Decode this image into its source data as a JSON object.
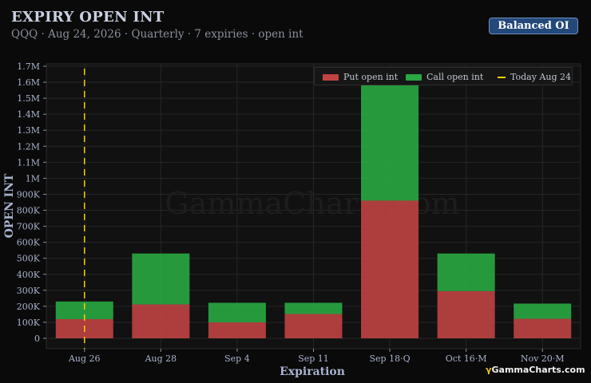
{
  "header": {
    "title": "EXPIRY OPEN INT",
    "subtitle": "QQQ · Aug 24, 2026 · Quarterly · 7 expiries · open int",
    "balanced_button": "Balanced OI"
  },
  "watermark": "GammaCharts.com",
  "logo": {
    "glyph": "γ",
    "text": "GammaCharts.com"
  },
  "colors": {
    "put": "#c04343",
    "call": "#2aa842",
    "today": "#f5d000",
    "background": "#0a0a0a"
  },
  "chart_data": {
    "type": "bar",
    "stacked": true,
    "xlabel": "Expiration",
    "ylabel": "OPEN INT",
    "categories": [
      "Aug 26",
      "Aug 28",
      "Sep 4",
      "Sep 11",
      "Sep 18·Q",
      "Oct 16·M",
      "Nov 20·M"
    ],
    "series": [
      {
        "name": "Put open int",
        "values": [
          120000,
          212000,
          100000,
          152000,
          860000,
          295000,
          122000
        ]
      },
      {
        "name": "Call open int",
        "values": [
          110000,
          318000,
          122000,
          70000,
          805000,
          235000,
          95000
        ]
      }
    ],
    "today_marker": {
      "label": "Today Aug 24",
      "category_index": 0
    },
    "ylim": [
      0,
      1700000
    ],
    "yticks": [
      0,
      100000,
      200000,
      300000,
      400000,
      500000,
      600000,
      700000,
      800000,
      900000,
      1000000,
      1100000,
      1200000,
      1300000,
      1400000,
      1500000,
      1600000,
      1700000
    ],
    "ytick_labels": [
      "0",
      "100K",
      "200K",
      "300K",
      "400K",
      "500K",
      "600K",
      "700K",
      "800K",
      "900K",
      "1M",
      "1.1M",
      "1.2M",
      "1.3M",
      "1.4M",
      "1.5M",
      "1.6M",
      "1.7M"
    ],
    "grid": true,
    "legend": "top-right"
  }
}
